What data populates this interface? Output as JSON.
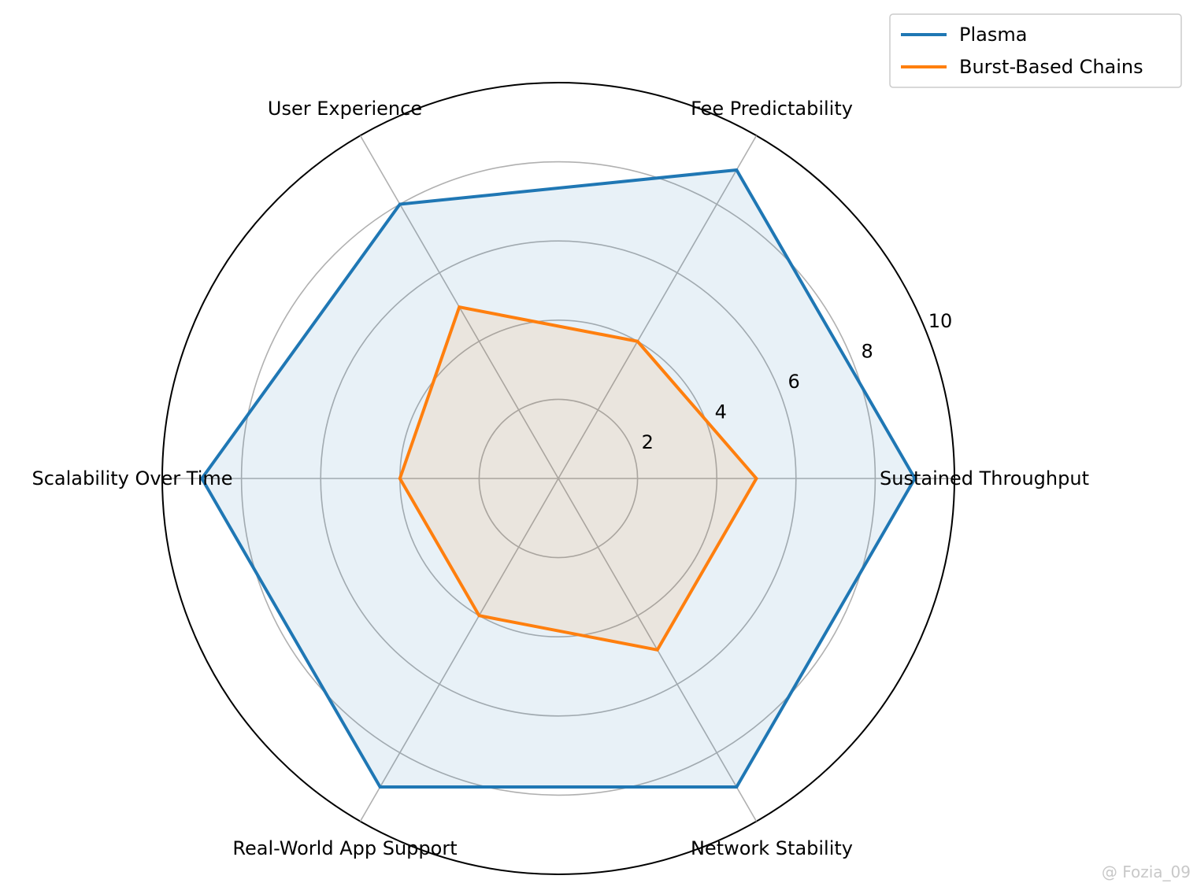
{
  "chart_data": {
    "type": "radar",
    "categories": [
      "Sustained Throughput",
      "Fee Predictability",
      "User Experience",
      "Scalability Over Time",
      "Real-World App Support",
      "Network Stability"
    ],
    "series": [
      {
        "name": "Plasma",
        "values": [
          9,
          9,
          8,
          9,
          9,
          9
        ],
        "color": "#1f77b4"
      },
      {
        "name": "Burst-Based Chains",
        "values": [
          5,
          4,
          5,
          4,
          4,
          5
        ],
        "color": "#ff7f0e"
      }
    ],
    "rlim": [
      0,
      10
    ],
    "radial_ticks": [
      "2",
      "4",
      "6",
      "8",
      "10"
    ],
    "radial_tick_values": [
      2,
      4,
      6,
      8,
      10
    ],
    "grid": true,
    "fill_alpha": 0.1,
    "legend_placement": "top-right"
  },
  "watermark": "@ Fozia_09"
}
